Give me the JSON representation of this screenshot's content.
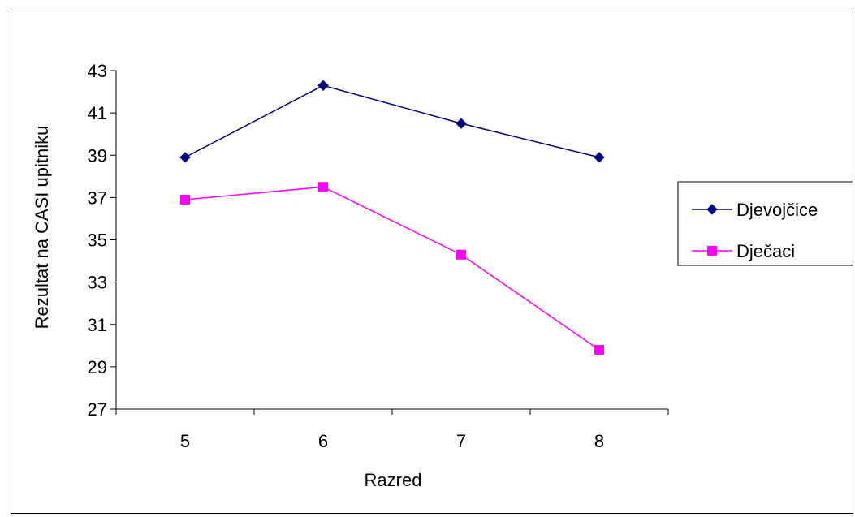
{
  "chart_data": {
    "type": "line",
    "title": "",
    "xlabel": "Razred",
    "ylabel": "Rezultat na CASI upitniku",
    "categories": [
      "5",
      "6",
      "7",
      "8"
    ],
    "ylim": [
      27,
      43
    ],
    "yticks": [
      "27",
      "29",
      "31",
      "33",
      "35",
      "37",
      "39",
      "41",
      "43"
    ],
    "grid": false,
    "legend_position": "right",
    "series": [
      {
        "name": "Djevojčice",
        "color": "#000080",
        "marker": "diamond",
        "values": [
          38.9,
          42.3,
          40.5,
          38.9
        ]
      },
      {
        "name": "Dječaci",
        "color": "#ff00ff",
        "marker": "square",
        "values": [
          36.9,
          37.5,
          34.3,
          29.8
        ]
      }
    ]
  }
}
